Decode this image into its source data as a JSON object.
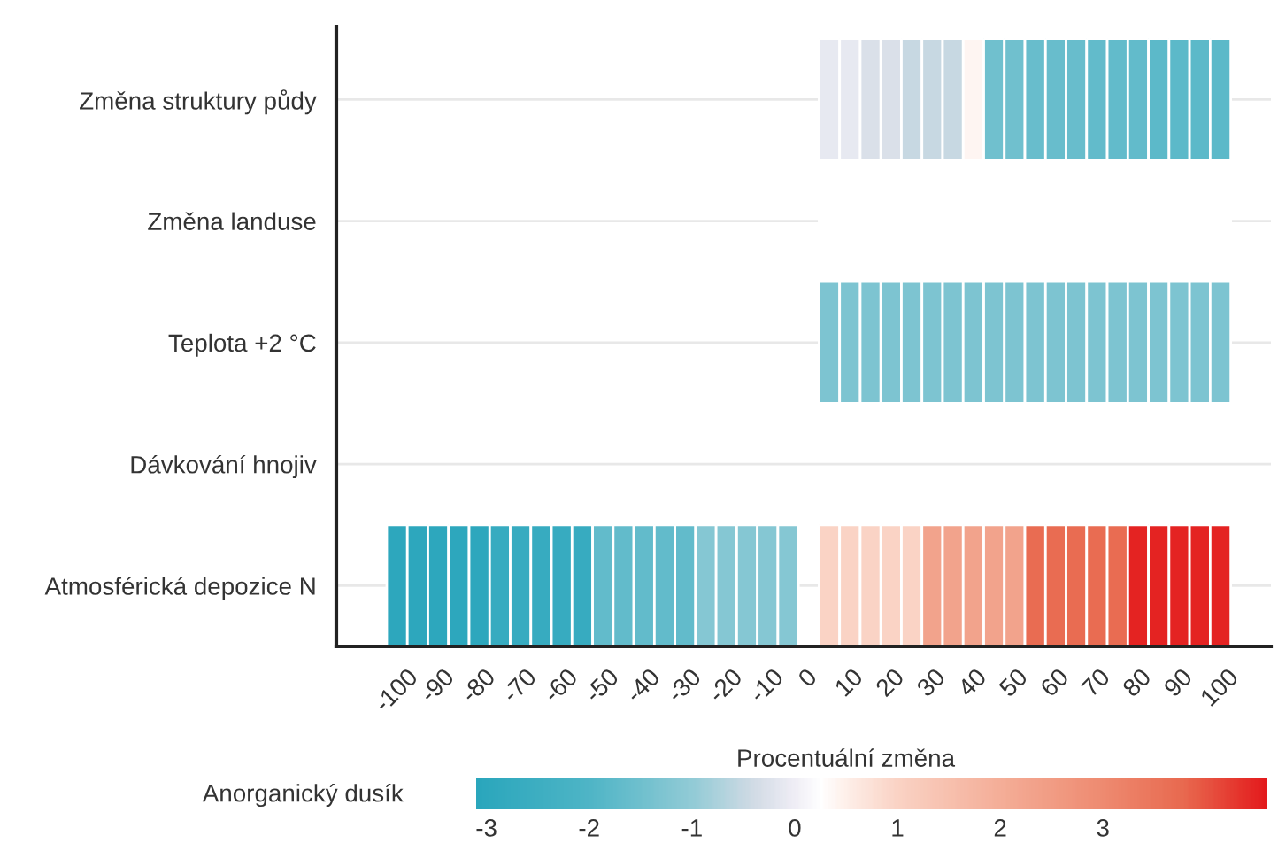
{
  "chart_data": {
    "type": "heatmap",
    "xlabel": "Procentuální změna",
    "clabel": "Anorganický dusík",
    "categories": [
      "-100",
      null,
      "-90",
      null,
      "-80",
      null,
      "-70",
      null,
      "-60",
      null,
      "-50",
      null,
      "-40",
      null,
      "-30",
      null,
      "-20",
      null,
      "-10",
      null,
      "0",
      null,
      "10",
      null,
      "20",
      null,
      "30",
      null,
      "40",
      null,
      "50",
      null,
      "60",
      null,
      "70",
      null,
      "80",
      null,
      "90",
      null,
      "100"
    ],
    "y_categories": [
      "Změna struktury půdy",
      "Změna landuse",
      "Teplota +2 °C",
      "Dávkování hnojiv",
      "Atmosférická depozice N"
    ],
    "cells": [
      [
        null,
        null,
        null,
        null,
        null,
        null,
        null,
        null,
        null,
        null,
        null,
        null,
        null,
        null,
        null,
        null,
        null,
        null,
        null,
        null,
        null,
        -0.1,
        -0.1,
        -0.3,
        -0.3,
        -0.5,
        -0.5,
        -0.5,
        0.4,
        -1.5,
        -1.5,
        -1.6,
        -1.6,
        -1.6,
        -1.7,
        -1.7,
        -1.7,
        -1.8,
        -1.8,
        -1.8,
        -1.8
      ],
      [
        null,
        null,
        null,
        null,
        null,
        null,
        null,
        null,
        null,
        null,
        null,
        null,
        null,
        null,
        null,
        null,
        null,
        null,
        null,
        null,
        null,
        0.25,
        0.25,
        0.25,
        0.25,
        0.25,
        0.25,
        0.25,
        0.25,
        0.25,
        0.25,
        0.25,
        0.25,
        0.25,
        0.25,
        0.25,
        0.25,
        0.25,
        0.25,
        0.25,
        0.25
      ],
      [
        null,
        null,
        null,
        null,
        null,
        null,
        null,
        null,
        null,
        null,
        null,
        null,
        null,
        null,
        null,
        null,
        null,
        null,
        null,
        null,
        null,
        -1.3,
        -1.3,
        -1.3,
        -1.3,
        -1.3,
        -1.3,
        -1.3,
        -1.3,
        -1.3,
        -1.3,
        -1.3,
        -1.3,
        -1.3,
        -1.3,
        -1.3,
        -1.3,
        -1.3,
        -1.3,
        -1.3,
        -1.3
      ],
      [
        null,
        null,
        null,
        null,
        null,
        null,
        null,
        null,
        null,
        null,
        null,
        null,
        null,
        null,
        null,
        null,
        null,
        null,
        null,
        null,
        null,
        null,
        null,
        null,
        null,
        null,
        null,
        null,
        null,
        null,
        null,
        null,
        null,
        null,
        null,
        null,
        null,
        null,
        null,
        null,
        null
      ],
      [
        -3.0,
        -3.0,
        -3.0,
        -3.0,
        -3.0,
        -2.7,
        -2.7,
        -2.7,
        -2.7,
        -2.7,
        -1.7,
        -1.7,
        -1.7,
        -1.7,
        -1.7,
        -1.2,
        -1.2,
        -1.2,
        -1.2,
        -1.2,
        null,
        1.0,
        1.0,
        1.0,
        1.0,
        1.0,
        2.3,
        2.3,
        2.3,
        2.3,
        2.3,
        3.7,
        3.7,
        3.7,
        3.7,
        3.7,
        4.5,
        4.5,
        4.5,
        4.5,
        4.5
      ]
    ],
    "clim": [
      -3.1,
      4.6
    ],
    "cticks": [
      -3,
      -2,
      -1,
      0,
      1,
      2,
      3
    ],
    "grid": "y"
  }
}
